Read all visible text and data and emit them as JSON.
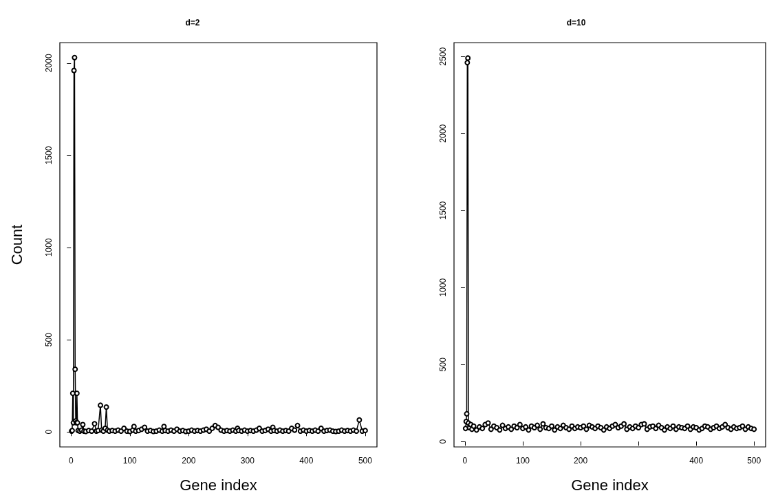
{
  "chart_data": [
    {
      "type": "line",
      "title": "d=2",
      "xlabel": "Gene index",
      "ylabel": "Count",
      "marker": "circle",
      "xlim": [
        -19,
        520
      ],
      "xticks": [
        0,
        100,
        200,
        300,
        400,
        500
      ],
      "ylim": [
        -81,
        2111
      ],
      "yticks": [
        0,
        500,
        1000,
        1500,
        2000
      ],
      "series": [
        {
          "color": "#000000",
          "x": [
            1,
            2,
            3,
            4,
            5,
            6,
            7,
            8,
            9,
            10,
            11,
            12,
            15,
            18,
            20,
            22,
            25,
            30,
            35,
            40,
            43,
            46,
            50,
            52,
            55,
            58,
            60,
            62,
            65,
            70,
            75,
            80,
            85,
            90,
            95,
            100,
            105,
            107,
            110,
            115,
            120,
            125,
            130,
            135,
            140,
            145,
            150,
            155,
            158,
            160,
            165,
            170,
            175,
            180,
            185,
            190,
            195,
            200,
            205,
            210,
            215,
            220,
            225,
            230,
            235,
            240,
            245,
            250,
            255,
            260,
            265,
            270,
            275,
            280,
            283,
            285,
            290,
            295,
            300,
            305,
            310,
            315,
            320,
            325,
            330,
            335,
            340,
            343,
            345,
            350,
            355,
            360,
            365,
            370,
            375,
            380,
            385,
            390,
            395,
            400,
            405,
            410,
            415,
            420,
            425,
            430,
            435,
            440,
            445,
            450,
            455,
            460,
            465,
            470,
            475,
            480,
            485,
            490,
            495,
            500
          ],
          "values": [
            5,
            8,
            210,
            50,
            1960,
            2030,
            340,
            60,
            50,
            210,
            50,
            8,
            5,
            10,
            40,
            5,
            3,
            8,
            5,
            45,
            5,
            8,
            145,
            10,
            5,
            20,
            135,
            10,
            5,
            8,
            5,
            10,
            5,
            20,
            5,
            3,
            10,
            30,
            5,
            8,
            15,
            25,
            5,
            8,
            3,
            5,
            10,
            5,
            30,
            8,
            5,
            10,
            5,
            15,
            5,
            8,
            3,
            5,
            10,
            5,
            8,
            5,
            10,
            15,
            5,
            20,
            35,
            25,
            10,
            5,
            8,
            5,
            10,
            5,
            20,
            8,
            5,
            10,
            5,
            8,
            5,
            10,
            20,
            5,
            8,
            15,
            5,
            25,
            8,
            5,
            10,
            5,
            8,
            5,
            20,
            10,
            35,
            5,
            10,
            5,
            8,
            5,
            10,
            5,
            20,
            5,
            8,
            10,
            5,
            3,
            5,
            10,
            5,
            8,
            5,
            10,
            5,
            65,
            5,
            8
          ]
        }
      ]
    },
    {
      "type": "line",
      "title": "d=10",
      "xlabel": "Gene index",
      "marker": "circle",
      "xlim": [
        -19,
        520
      ],
      "xticks": [
        0,
        100,
        200,
        {
          "value": 300,
          "label": null
        },
        400,
        500
      ],
      "ylim": [
        -35,
        2590
      ],
      "yticks": [
        0,
        500,
        1000,
        1500,
        2000,
        2500
      ],
      "series": [
        {
          "color": "#000000",
          "x": [
            1,
            2,
            3,
            4,
            5,
            6,
            8,
            10,
            12,
            15,
            20,
            25,
            30,
            35,
            40,
            45,
            50,
            55,
            60,
            65,
            70,
            75,
            80,
            85,
            90,
            95,
            100,
            105,
            110,
            115,
            120,
            125,
            130,
            135,
            140,
            145,
            150,
            155,
            160,
            165,
            170,
            175,
            180,
            185,
            190,
            195,
            200,
            205,
            210,
            215,
            220,
            225,
            230,
            235,
            240,
            245,
            250,
            255,
            260,
            265,
            270,
            275,
            280,
            285,
            290,
            295,
            300,
            305,
            310,
            315,
            320,
            325,
            330,
            335,
            340,
            345,
            350,
            355,
            360,
            365,
            370,
            375,
            380,
            385,
            390,
            395,
            400,
            405,
            410,
            415,
            420,
            425,
            430,
            435,
            440,
            445,
            450,
            455,
            460,
            465,
            470,
            475,
            480,
            485,
            490,
            495,
            500
          ],
          "values": [
            85,
            130,
            180,
            2460,
            2490,
            120,
            90,
            110,
            80,
            100,
            75,
            95,
            85,
            110,
            120,
            80,
            100,
            90,
            75,
            105,
            85,
            95,
            80,
            100,
            90,
            110,
            85,
            95,
            75,
            100,
            90,
            105,
            80,
            115,
            90,
            85,
            100,
            75,
            95,
            85,
            105,
            90,
            80,
            100,
            85,
            95,
            90,
            100,
            80,
            105,
            95,
            85,
            100,
            90,
            75,
            95,
            85,
            100,
            110,
            90,
            100,
            115,
            80,
            95,
            85,
            100,
            90,
            110,
            115,
            80,
            95,
            100,
            85,
            105,
            90,
            75,
            95,
            85,
            100,
            80,
            95,
            90,
            85,
            100,
            80,
            95,
            90,
            75,
            85,
            100,
            95,
            80,
            90,
            100,
            85,
            95,
            110,
            90,
            80,
            95,
            85,
            90,
            100,
            80,
            95,
            85,
            80
          ]
        }
      ]
    }
  ]
}
